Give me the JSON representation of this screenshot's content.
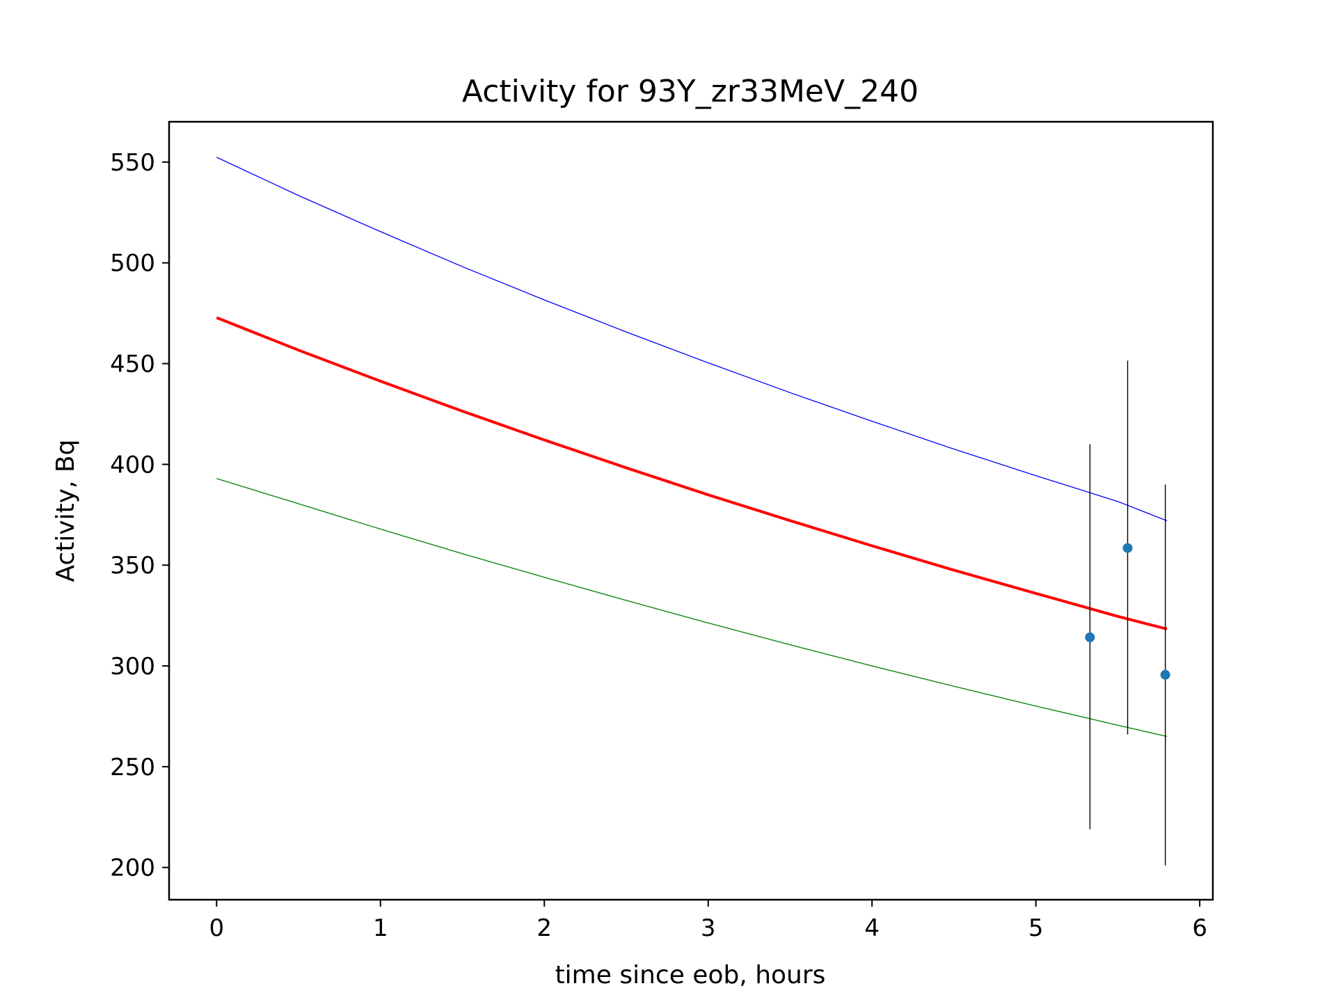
{
  "chart_data": {
    "type": "line",
    "title": "Activity for 93Y_zr33MeV_240",
    "xlabel": "time since eob, hours",
    "ylabel": "Activity, Bq",
    "xlim": [
      -0.29,
      6.08
    ],
    "ylim": [
      184,
      570
    ],
    "xticks": [
      0,
      1,
      2,
      3,
      4,
      5,
      6
    ],
    "yticks": [
      200,
      250,
      300,
      350,
      400,
      450,
      500,
      550
    ],
    "grid": false,
    "legend": "none",
    "series": [
      {
        "style": "upper-bound-line",
        "color": "#0000ff",
        "x": [
          0,
          0.5,
          1,
          1.5,
          2,
          2.5,
          3,
          3.5,
          4,
          4.5,
          5,
          5.5,
          5.8
        ],
        "y": [
          552.4,
          533.4,
          515.5,
          498.1,
          481.6,
          465.7,
          450.4,
          435.6,
          421.4,
          407.6,
          394.4,
          381.6,
          372.0
        ]
      },
      {
        "style": "fit-line",
        "color": "#ff0000",
        "x": [
          0,
          0.5,
          1,
          1.5,
          2,
          2.5,
          3,
          3.5,
          4,
          4.5,
          5,
          5.5,
          5.8
        ],
        "y": [
          472.8,
          456.7,
          441.3,
          426.4,
          412.1,
          398.3,
          384.9,
          372.1,
          359.6,
          347.5,
          336.0,
          324.6,
          318.3
        ]
      },
      {
        "style": "lower-bound-line",
        "color": "#008000",
        "x": [
          0,
          0.5,
          1,
          1.5,
          2,
          2.5,
          3,
          3.5,
          4,
          4.5,
          5,
          5.5,
          5.8
        ],
        "y": [
          393.0,
          380.5,
          367.9,
          355.7,
          344.0,
          332.5,
          321.3,
          310.5,
          300.0,
          289.9,
          280.1,
          270.6,
          265.0
        ]
      },
      {
        "style": "measured-points",
        "color": "#1f77b4",
        "x": [
          5.33,
          5.56,
          5.79
        ],
        "y": [
          314.2,
          358.5,
          295.6
        ],
        "yerr_low": [
          219.0,
          266.0,
          201.0
        ],
        "yerr_high": [
          410.0,
          451.5,
          390.0
        ]
      }
    ]
  },
  "colors": {
    "axes": "#000000",
    "errorbar": "#000000",
    "background": "#ffffff"
  }
}
